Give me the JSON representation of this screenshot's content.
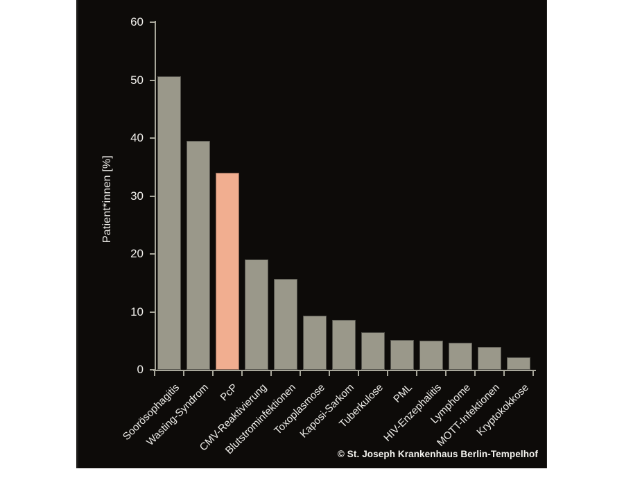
{
  "chart_data": {
    "type": "bar",
    "title": "",
    "xlabel": "",
    "ylabel": "Patient*innen [%]",
    "ylim": [
      0,
      60
    ],
    "yticks": [
      0,
      10,
      20,
      30,
      40,
      50,
      60
    ],
    "grid": false,
    "legend": false,
    "categories": [
      "Soorösophagitis",
      "Wasting-Syndrom",
      "PcP",
      "CMV-Reaktivierung",
      "Blutstrominfektionen",
      "Toxoplasmose",
      "Kaposi-Sarkom",
      "Tuberkulose",
      "PML",
      "HIV-Enzephalitis",
      "Lymphome",
      "MOTT-Infektionen",
      "Kryptokokkose"
    ],
    "values": [
      50.7,
      39.5,
      34.0,
      19.0,
      15.7,
      9.3,
      8.6,
      6.5,
      5.1,
      5.0,
      4.7,
      4.0,
      2.2
    ],
    "highlight_category": "PcP",
    "colors": {
      "background": "#0d0b09",
      "bar": "#9a988a",
      "highlight_bar": "#f1ae90",
      "axis": "#a8a79b",
      "text": "#f0efeb"
    },
    "credit": "© St. Joseph Krankenhaus Berlin-Tempelhof"
  }
}
